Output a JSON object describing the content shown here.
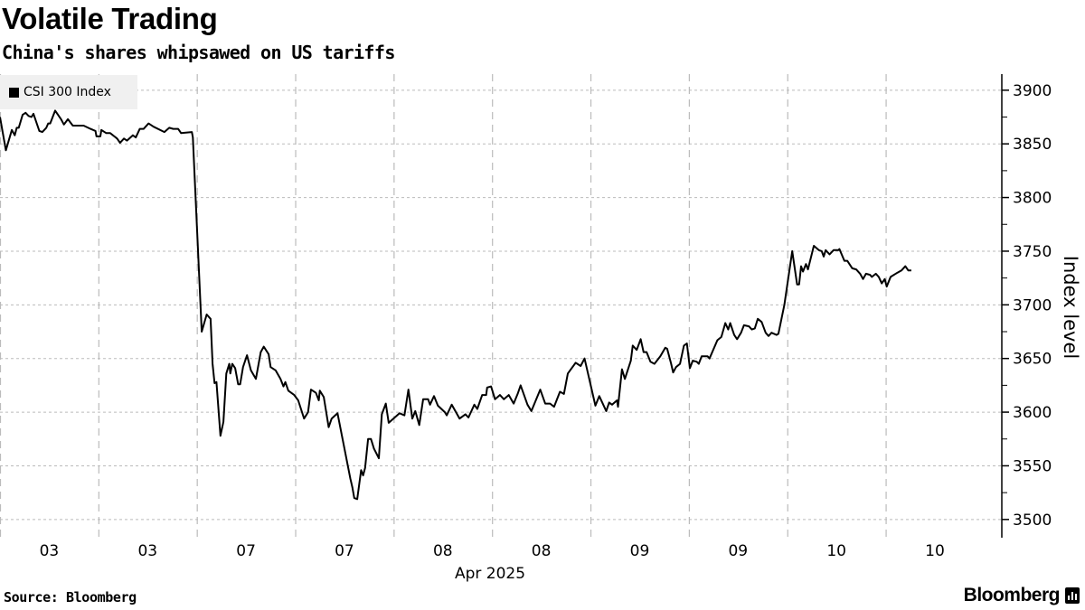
{
  "title": "Volatile Trading",
  "subtitle": "China's shares whipsawed on US tariffs",
  "source": "Source: Bloomberg",
  "brand": "Bloomberg",
  "chart_data": {
    "type": "line",
    "title": "Volatile Trading",
    "subtitle": "China's shares whipsawed on US tariffs",
    "xlabel": "Apr 2025",
    "ylabel": "Index level",
    "x_unit": "trading half-day sessions from start of window",
    "xlim": [
      0,
      10.18
    ],
    "ylim": [
      3483,
      3915
    ],
    "yticks": [
      3500,
      3550,
      3600,
      3650,
      3700,
      3750,
      3800,
      3850,
      3900
    ],
    "xtick_labels": [
      "03",
      "03",
      "07",
      "07",
      "08",
      "08",
      "09",
      "09",
      "10",
      "10"
    ],
    "xtick_positions": [
      0.5,
      1.5,
      2.5,
      3.5,
      4.5,
      5.5,
      6.5,
      7.5,
      8.5,
      9.5
    ],
    "x_gridlines": [
      0,
      1,
      2,
      3,
      4,
      5,
      6,
      7,
      8,
      9
    ],
    "grid": true,
    "legend": {
      "position": "top-left",
      "entries": [
        "CSI 300 Index"
      ]
    },
    "series": [
      {
        "name": "CSI 300 Index",
        "color": "#000000",
        "points": [
          [
            0,
            3875
          ],
          [
            0.06,
            3844
          ],
          [
            0.12,
            3863
          ],
          [
            0.15,
            3858
          ],
          [
            0.17,
            3865
          ],
          [
            0.19,
            3865
          ],
          [
            0.23,
            3877
          ],
          [
            0.26,
            3879
          ],
          [
            0.29,
            3876
          ],
          [
            0.32,
            3875
          ],
          [
            0.34,
            3878
          ],
          [
            0.4,
            3862
          ],
          [
            0.43,
            3861
          ],
          [
            0.47,
            3865
          ],
          [
            0.49,
            3869
          ],
          [
            0.51,
            3869
          ],
          [
            0.56,
            3881
          ],
          [
            0.62,
            3873
          ],
          [
            0.65,
            3868
          ],
          [
            0.69,
            3873
          ],
          [
            0.74,
            3867
          ],
          [
            0.85,
            3867
          ],
          [
            0.92,
            3864
          ],
          [
            0.97,
            3862
          ],
          [
            0.98,
            3857
          ],
          [
            1.02,
            3857
          ],
          [
            1.03,
            3863
          ],
          [
            1.08,
            3860
          ],
          [
            1.12,
            3860
          ],
          [
            1.19,
            3855
          ],
          [
            1.22,
            3851
          ],
          [
            1.26,
            3855
          ],
          [
            1.29,
            3853
          ],
          [
            1.35,
            3858
          ],
          [
            1.38,
            3856
          ],
          [
            1.42,
            3864
          ],
          [
            1.46,
            3864
          ],
          [
            1.51,
            3869
          ],
          [
            1.56,
            3866
          ],
          [
            1.67,
            3861
          ],
          [
            1.72,
            3865
          ],
          [
            1.76,
            3864
          ],
          [
            1.81,
            3864
          ],
          [
            1.84,
            3860
          ],
          [
            1.95,
            3861
          ],
          [
            1.96,
            3856
          ],
          [
            2.05,
            3675
          ],
          [
            2.1,
            3691
          ],
          [
            2.14,
            3687
          ],
          [
            2.16,
            3645
          ],
          [
            2.18,
            3627
          ],
          [
            2.2,
            3628
          ],
          [
            2.24,
            3578
          ],
          [
            2.27,
            3591
          ],
          [
            2.3,
            3636
          ],
          [
            2.33,
            3645
          ],
          [
            2.34,
            3636
          ],
          [
            2.36,
            3645
          ],
          [
            2.39,
            3641
          ],
          [
            2.42,
            3626
          ],
          [
            2.44,
            3626
          ],
          [
            2.47,
            3642
          ],
          [
            2.51,
            3653
          ],
          [
            2.55,
            3639
          ],
          [
            2.6,
            3631
          ],
          [
            2.65,
            3656
          ],
          [
            2.68,
            3661
          ],
          [
            2.73,
            3654
          ],
          [
            2.75,
            3642
          ],
          [
            2.8,
            3639
          ],
          [
            2.85,
            3631
          ],
          [
            2.88,
            3624
          ],
          [
            2.9,
            3628
          ],
          [
            2.93,
            3620
          ],
          [
            2.99,
            3616
          ],
          [
            3.03,
            3611
          ],
          [
            3.09,
            3594
          ],
          [
            3.13,
            3600
          ],
          [
            3.16,
            3621
          ],
          [
            3.21,
            3618
          ],
          [
            3.24,
            3611
          ],
          [
            3.25,
            3620
          ],
          [
            3.29,
            3614
          ],
          [
            3.34,
            3586
          ],
          [
            3.37,
            3594
          ],
          [
            3.43,
            3599
          ],
          [
            3.47,
            3580
          ],
          [
            3.56,
            3538
          ],
          [
            3.58,
            3530
          ],
          [
            3.6,
            3520
          ],
          [
            3.63,
            3519
          ],
          [
            3.67,
            3546
          ],
          [
            3.69,
            3541
          ],
          [
            3.71,
            3548
          ],
          [
            3.74,
            3575
          ],
          [
            3.77,
            3575
          ],
          [
            3.8,
            3566
          ],
          [
            3.85,
            3557
          ],
          [
            3.88,
            3598
          ],
          [
            3.92,
            3608
          ],
          [
            3.95,
            3590
          ],
          [
            4.06,
            3599
          ],
          [
            4.11,
            3597
          ],
          [
            4.15,
            3621
          ],
          [
            4.19,
            3594
          ],
          [
            4.22,
            3601
          ],
          [
            4.26,
            3588
          ],
          [
            4.3,
            3612
          ],
          [
            4.35,
            3612
          ],
          [
            4.37,
            3607
          ],
          [
            4.41,
            3615
          ],
          [
            4.45,
            3606
          ],
          [
            4.52,
            3600
          ],
          [
            4.54,
            3597
          ],
          [
            4.59,
            3607
          ],
          [
            4.67,
            3594
          ],
          [
            4.73,
            3598
          ],
          [
            4.76,
            3595
          ],
          [
            4.82,
            3607
          ],
          [
            4.85,
            3603
          ],
          [
            4.9,
            3616
          ],
          [
            4.94,
            3616
          ],
          [
            4.95,
            3623
          ],
          [
            4.99,
            3624
          ],
          [
            5.03,
            3612
          ],
          [
            5.08,
            3616
          ],
          [
            5.12,
            3612
          ],
          [
            5.17,
            3616
          ],
          [
            5.22,
            3608
          ],
          [
            5.26,
            3617
          ],
          [
            5.29,
            3625
          ],
          [
            5.36,
            3607
          ],
          [
            5.4,
            3601
          ],
          [
            5.49,
            3621
          ],
          [
            5.54,
            3608
          ],
          [
            5.59,
            3608
          ],
          [
            5.63,
            3605
          ],
          [
            5.69,
            3619
          ],
          [
            5.73,
            3617
          ],
          [
            5.77,
            3636
          ],
          [
            5.85,
            3646
          ],
          [
            5.9,
            3643
          ],
          [
            5.94,
            3650
          ],
          [
            6.05,
            3606
          ],
          [
            6.09,
            3615
          ],
          [
            6.16,
            3601
          ],
          [
            6.19,
            3609
          ],
          [
            6.22,
            3607
          ],
          [
            6.27,
            3611
          ],
          [
            6.28,
            3605
          ],
          [
            6.32,
            3640
          ],
          [
            6.35,
            3631
          ],
          [
            6.41,
            3648
          ],
          [
            6.43,
            3662
          ],
          [
            6.47,
            3658
          ],
          [
            6.51,
            3668
          ],
          [
            6.54,
            3656
          ],
          [
            6.57,
            3656
          ],
          [
            6.61,
            3647
          ],
          [
            6.65,
            3645
          ],
          [
            6.71,
            3652
          ],
          [
            6.76,
            3660
          ],
          [
            6.78,
            3659
          ],
          [
            6.82,
            3645
          ],
          [
            6.84,
            3637
          ],
          [
            6.87,
            3642
          ],
          [
            6.91,
            3645
          ],
          [
            6.95,
            3662
          ],
          [
            6.98,
            3664
          ],
          [
            7.01,
            3641
          ],
          [
            7.04,
            3648
          ],
          [
            7.08,
            3647
          ],
          [
            7.1,
            3645
          ],
          [
            7.13,
            3652
          ],
          [
            7.19,
            3652
          ],
          [
            7.21,
            3650
          ],
          [
            7.29,
            3667
          ],
          [
            7.33,
            3670
          ],
          [
            7.37,
            3683
          ],
          [
            7.4,
            3677
          ],
          [
            7.42,
            3683
          ],
          [
            7.46,
            3672
          ],
          [
            7.49,
            3668
          ],
          [
            7.53,
            3674
          ],
          [
            7.56,
            3681
          ],
          [
            7.61,
            3680
          ],
          [
            7.64,
            3677
          ],
          [
            7.67,
            3678
          ],
          [
            7.7,
            3687
          ],
          [
            7.74,
            3684
          ],
          [
            7.78,
            3674
          ],
          [
            7.81,
            3671
          ],
          [
            7.84,
            3674
          ],
          [
            7.89,
            3672
          ],
          [
            7.91,
            3673
          ],
          [
            7.97,
            3700
          ],
          [
            8.05,
            3750
          ],
          [
            8.1,
            3719
          ],
          [
            8.12,
            3719
          ],
          [
            8.14,
            3736
          ],
          [
            8.16,
            3731
          ],
          [
            8.19,
            3738
          ],
          [
            8.21,
            3733
          ],
          [
            8.27,
            3755
          ],
          [
            8.32,
            3751
          ],
          [
            8.35,
            3750
          ],
          [
            8.37,
            3745
          ],
          [
            8.39,
            3751
          ],
          [
            8.43,
            3747
          ],
          [
            8.47,
            3751
          ],
          [
            8.52,
            3751
          ],
          [
            8.53,
            3752
          ],
          [
            8.58,
            3741
          ],
          [
            8.61,
            3741
          ],
          [
            8.66,
            3734
          ],
          [
            8.7,
            3733
          ],
          [
            8.74,
            3729
          ],
          [
            8.77,
            3724
          ],
          [
            8.8,
            3729
          ],
          [
            8.84,
            3728
          ],
          [
            8.86,
            3726
          ],
          [
            8.9,
            3729
          ],
          [
            8.93,
            3726
          ],
          [
            8.96,
            3720
          ],
          [
            8.99,
            3724
          ],
          [
            9.01,
            3717
          ],
          [
            9.05,
            3726
          ],
          [
            9.12,
            3730
          ],
          [
            9.16,
            3732
          ],
          [
            9.2,
            3736
          ],
          [
            9.23,
            3732
          ],
          [
            9.26,
            3732
          ]
        ]
      }
    ]
  }
}
